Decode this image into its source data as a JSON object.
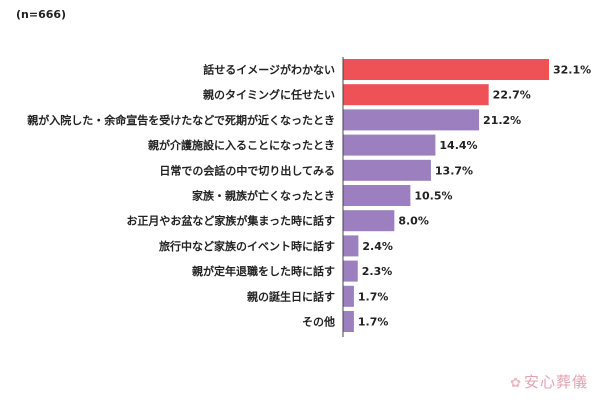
{
  "note": "(n=666)",
  "watermark": {
    "text": "安心葬儀",
    "icon": "flower-icon",
    "color": "#e3a3b0"
  },
  "chart_data": {
    "type": "bar",
    "orientation": "horizontal",
    "title": "",
    "xlabel": "",
    "ylabel": "",
    "xlim": [
      0,
      35
    ],
    "grid": false,
    "legend": "none",
    "value_suffix": "%",
    "categories": [
      "話せるイメージがわかない",
      "親のタイミングに任せたい",
      "親が入院した・余命宣告を受けたなどで死期が近くなったとき",
      "親が介護施設に入ることになったとき",
      "日常での会話の中で切り出してみる",
      "家族・親族が亡くなったとき",
      "お正月やお盆など家族が集まった時に話す",
      "旅行中など家族のイベント時に話す",
      "親が定年退職をした時に話す",
      "親の誕生日に話す",
      "その他"
    ],
    "values": [
      32.1,
      22.7,
      21.2,
      14.4,
      13.7,
      10.5,
      8.0,
      2.4,
      2.3,
      1.7,
      1.7
    ],
    "value_labels": [
      "32.1%",
      "22.7%",
      "21.2%",
      "14.4%",
      "13.7%",
      "10.5%",
      "8.0%",
      "2.4%",
      "2.3%",
      "1.7%",
      "1.7%"
    ],
    "bar_colors": [
      "#ee5257",
      "#ee5257",
      "#9b7fbe",
      "#9b7fbe",
      "#9b7fbe",
      "#9b7fbe",
      "#9b7fbe",
      "#9b7fbe",
      "#9b7fbe",
      "#9b7fbe",
      "#9b7fbe"
    ]
  }
}
